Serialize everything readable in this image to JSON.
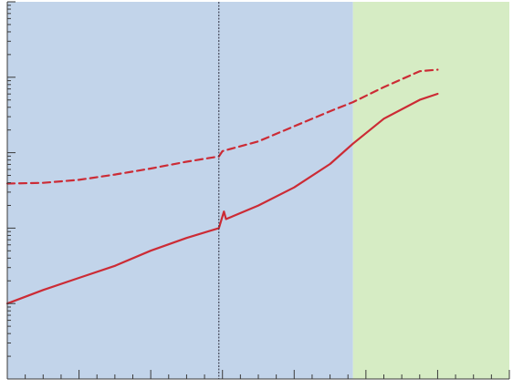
{
  "chart_data": {
    "type": "line",
    "title": "",
    "xlabel": "",
    "ylabel": "",
    "y_scale": "log",
    "xlim": [
      0,
      7
    ],
    "ylim_log10": [
      -1,
      4
    ],
    "grid": false,
    "legend": "none",
    "regions": [
      {
        "x_start": 0,
        "x_end": 4.82,
        "color": "#c2d4ea"
      },
      {
        "x_start": 4.82,
        "x_end": 7,
        "color": "#d6ecc4"
      }
    ],
    "vline": {
      "x": 2.95,
      "color": "#2a2a3a"
    },
    "series": [
      {
        "style": "dashed",
        "color": "#cc2b35",
        "x": [
          0,
          0.5,
          1.0,
          1.5,
          2.0,
          2.5,
          2.95,
          3.0,
          3.5,
          4.0,
          4.5,
          4.82,
          5.25,
          5.75,
          6.0
        ],
        "log10_y": [
          1.59,
          1.6,
          1.64,
          1.71,
          1.79,
          1.88,
          1.95,
          2.02,
          2.15,
          2.35,
          2.55,
          2.67,
          2.87,
          3.08,
          3.1
        ]
      },
      {
        "style": "solid",
        "color": "#cc2b35",
        "x": [
          0,
          0.5,
          1.0,
          1.5,
          2.0,
          2.5,
          2.95,
          3.02,
          3.05,
          3.5,
          4.0,
          4.5,
          4.82,
          5.25,
          5.75,
          6.0
        ],
        "log10_y": [
          0.0,
          0.18,
          0.34,
          0.5,
          0.7,
          0.87,
          1.0,
          1.22,
          1.12,
          1.3,
          1.54,
          1.85,
          2.12,
          2.45,
          2.7,
          2.78
        ]
      }
    ]
  }
}
